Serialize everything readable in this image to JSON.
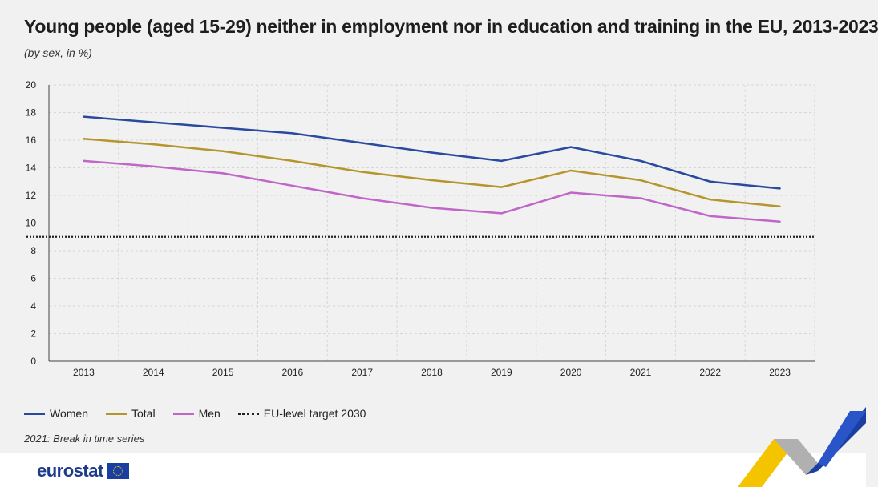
{
  "chart_data": {
    "type": "line",
    "title": "Young people (aged 15-29) neither in employment nor in education and training in the EU, 2013-2023",
    "subtitle": "(by sex, in %)",
    "categories": [
      "2013",
      "2014",
      "2015",
      "2016",
      "2017",
      "2018",
      "2019",
      "2020",
      "2021",
      "2022",
      "2023"
    ],
    "series": [
      {
        "name": "Women",
        "color": "#2a4aa0",
        "values": [
          17.7,
          17.3,
          16.9,
          16.5,
          15.8,
          15.1,
          14.5,
          15.5,
          14.5,
          13.0,
          12.5
        ]
      },
      {
        "name": "Total",
        "color": "#b5962c",
        "values": [
          16.1,
          15.7,
          15.2,
          14.5,
          13.7,
          13.1,
          12.6,
          13.8,
          13.1,
          11.7,
          11.2
        ]
      },
      {
        "name": "Men",
        "color": "#c066c9",
        "values": [
          14.5,
          14.1,
          13.6,
          12.7,
          11.8,
          11.1,
          10.7,
          12.2,
          11.8,
          10.5,
          10.1
        ]
      }
    ],
    "target": {
      "name": "EU-level target 2030",
      "value": 9,
      "color": "#222222"
    },
    "ylim": [
      0,
      20
    ],
    "yticks": [
      0,
      2,
      4,
      6,
      8,
      10,
      12,
      14,
      16,
      18,
      20
    ],
    "xlabel": "",
    "ylabel": "",
    "grid": true,
    "legend_position": "bottom-left"
  },
  "note": "2021: Break in time series",
  "logo": {
    "text": "eurostat"
  }
}
